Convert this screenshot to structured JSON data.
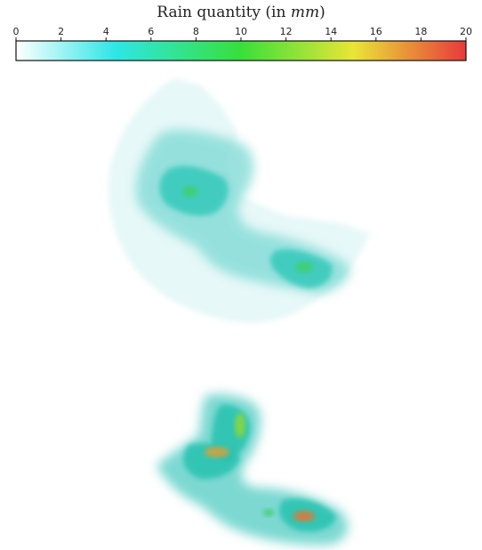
{
  "colorbar": {
    "title_text": "Rain quantity (in ",
    "title_unit": "mm",
    "title_close": ")",
    "min": 0,
    "max": 20,
    "tick_labels": [
      "0",
      "2",
      "4",
      "6",
      "8",
      "10",
      "12",
      "14",
      "16",
      "18",
      "20"
    ],
    "colors": [
      "#ffffff",
      "#2ee6e6",
      "#37e03a",
      "#e9e536",
      "#e8393b"
    ]
  },
  "chart_data": [
    {
      "type": "heatmap",
      "colorbar_range": [
        0,
        20
      ],
      "max_value_est": 10
    },
    {
      "type": "heatmap",
      "colorbar_range": [
        0,
        20
      ],
      "max_value_est": 18
    }
  ]
}
